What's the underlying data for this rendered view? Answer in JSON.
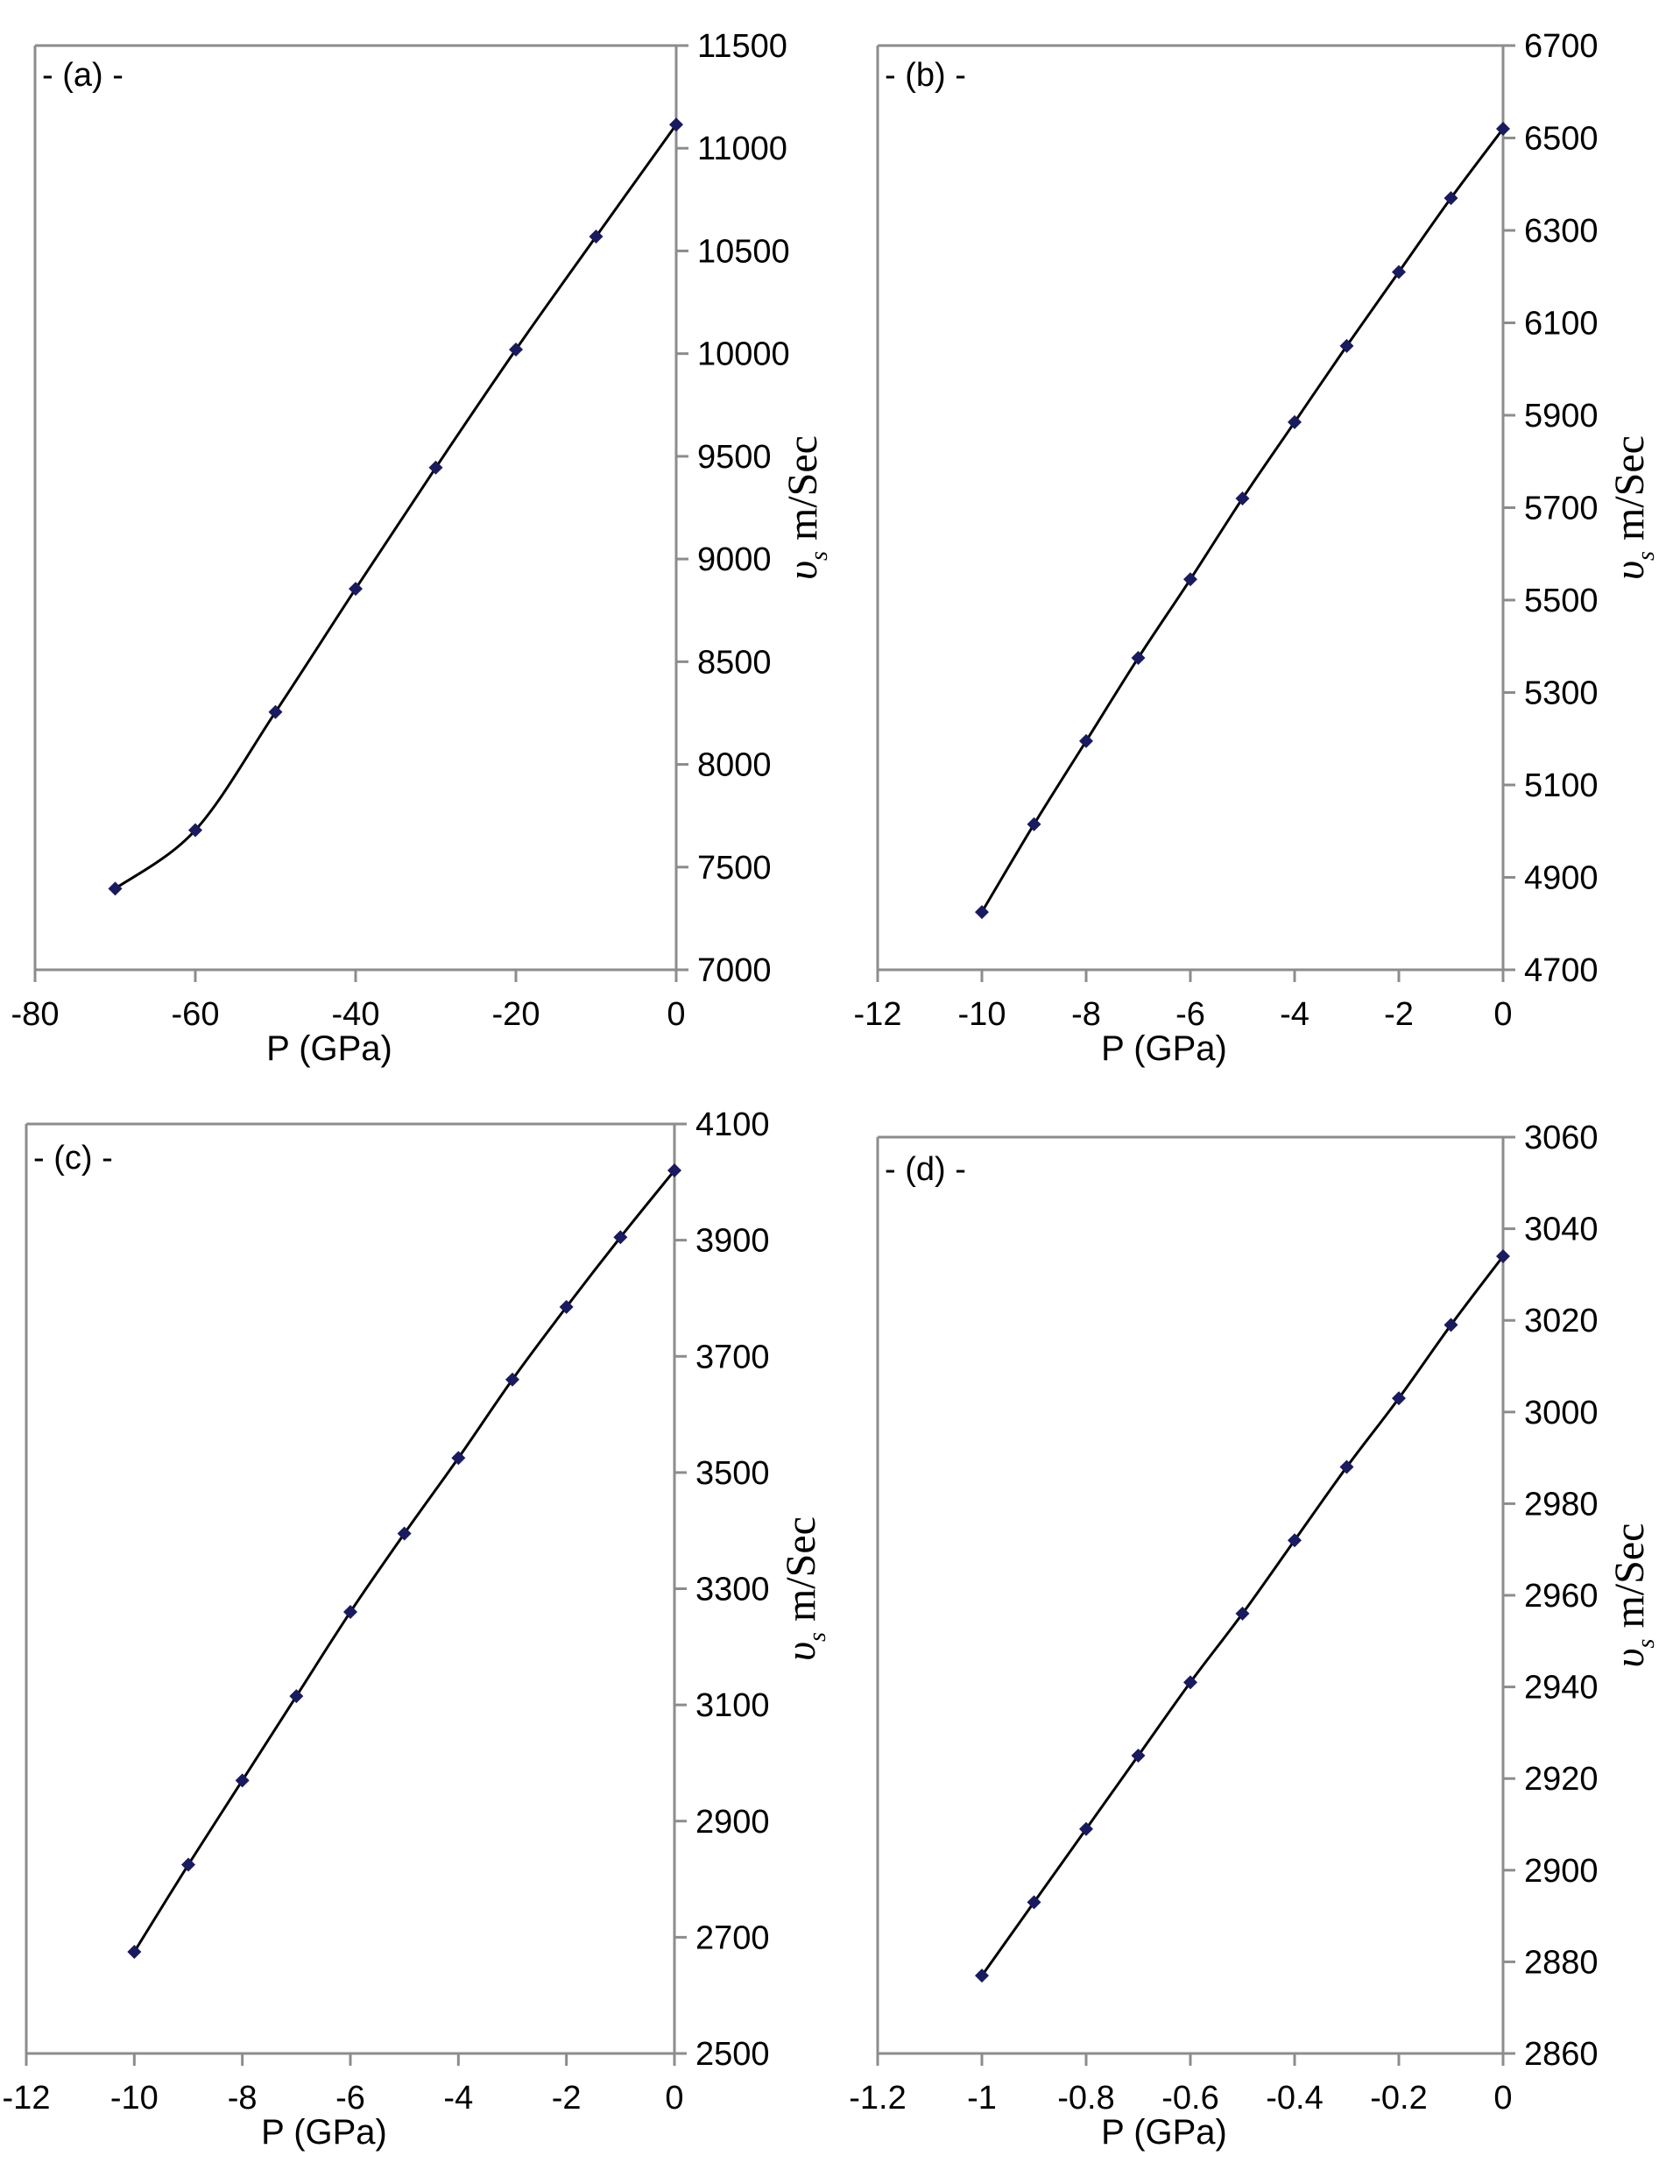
{
  "chart_data": [
    {
      "id": "a",
      "type": "line",
      "panel_label": "- (a) -",
      "xlabel": "P (GPa)",
      "ylabel_symbol": "υ",
      "ylabel_sub": "s",
      "ylabel_unit": " m/Sec",
      "xlim": [
        -80,
        0
      ],
      "ylim": [
        7000,
        11500
      ],
      "xticks": [
        -80,
        -60,
        -40,
        -20,
        0
      ],
      "yticks": [
        7000,
        7500,
        8000,
        8500,
        9000,
        9500,
        10000,
        10500,
        11000,
        11500
      ],
      "grid": false,
      "marker_color": "#1a1a5e",
      "line_color": "#000000",
      "series": [
        {
          "x": [
            -70,
            -60,
            -50,
            -40,
            -30,
            -20,
            -10,
            0
          ],
          "y": [
            7395,
            7680,
            8255,
            8855,
            9445,
            10020,
            10570,
            11115
          ]
        }
      ]
    },
    {
      "id": "b",
      "type": "line",
      "panel_label": "- (b) -",
      "xlabel": "P (GPa)",
      "ylabel_symbol": "υ",
      "ylabel_sub": "s",
      "ylabel_unit": " m/Sec",
      "xlim": [
        -12,
        0
      ],
      "ylim": [
        4700,
        6700
      ],
      "xticks": [
        -12,
        -10,
        -8,
        -6,
        -4,
        -2,
        0
      ],
      "yticks": [
        4700,
        4900,
        5100,
        5300,
        5500,
        5700,
        5900,
        6100,
        6300,
        6500,
        6700
      ],
      "grid": false,
      "marker_color": "#1a1a5e",
      "line_color": "#000000",
      "series": [
        {
          "x": [
            -10,
            -9,
            -8,
            -7,
            -6,
            -5,
            -4,
            -3,
            -2,
            -1,
            0
          ],
          "y": [
            4825,
            5015,
            5195,
            5375,
            5545,
            5720,
            5885,
            6050,
            6210,
            6370,
            6520
          ]
        }
      ]
    },
    {
      "id": "c",
      "type": "line",
      "panel_label": "- (c) -",
      "xlabel": "P (GPa)",
      "ylabel_symbol": "υ",
      "ylabel_sub": "s",
      "ylabel_unit": " m/Sec",
      "xlim": [
        -12,
        0
      ],
      "ylim": [
        2500,
        4100
      ],
      "xticks": [
        -12,
        -10,
        -8,
        -6,
        -4,
        -2,
        0
      ],
      "yticks": [
        2500,
        2700,
        2900,
        3100,
        3300,
        3500,
        3700,
        3900,
        4100
      ],
      "grid": false,
      "marker_color": "#1a1a5e",
      "line_color": "#000000",
      "series": [
        {
          "x": [
            -10,
            -9,
            -8,
            -7,
            -6,
            -5,
            -4,
            -3,
            -2,
            -1,
            0
          ],
          "y": [
            2675,
            2825,
            2970,
            3115,
            3260,
            3395,
            3525,
            3660,
            3785,
            3905,
            4020
          ]
        }
      ]
    },
    {
      "id": "d",
      "type": "line",
      "panel_label": "- (d) -",
      "xlabel": "P (GPa)",
      "ylabel_symbol": "υ",
      "ylabel_sub": "s",
      "ylabel_unit": " m/Sec",
      "xlim": [
        -1.2,
        0
      ],
      "ylim": [
        2860,
        3060
      ],
      "xticks": [
        -1.2,
        -1,
        -0.8,
        -0.6,
        -0.4,
        -0.2,
        0
      ],
      "yticks": [
        2860,
        2880,
        2900,
        2920,
        2940,
        2960,
        2980,
        3000,
        3020,
        3040,
        3060
      ],
      "grid": false,
      "marker_color": "#1a1a5e",
      "line_color": "#000000",
      "series": [
        {
          "x": [
            -1,
            -0.9,
            -0.8,
            -0.7,
            -0.6,
            -0.5,
            -0.4,
            -0.3,
            -0.2,
            -0.1,
            0
          ],
          "y": [
            2877,
            2893,
            2909,
            2925,
            2941,
            2956,
            2972,
            2988,
            3003,
            3019,
            3034
          ]
        }
      ]
    }
  ]
}
